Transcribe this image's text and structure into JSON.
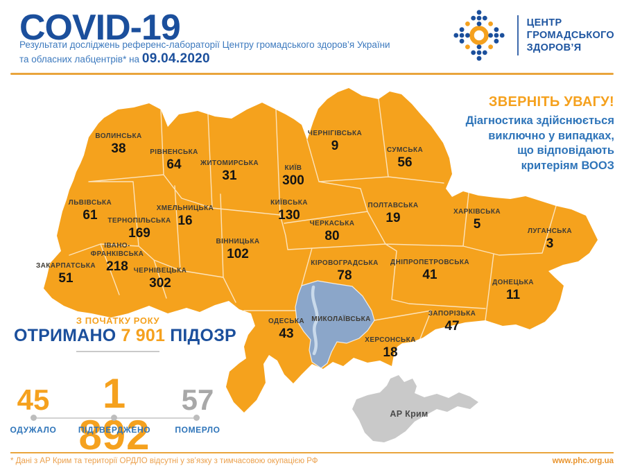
{
  "header": {
    "title": "COVID-19",
    "subtitle_line1": "Результати досліджень референс-лабораторії Центру громадського здоров’я України",
    "subtitle_line2": "та обласних лабцентрів* на",
    "date": "09.04.2020",
    "logo": {
      "line1": "ЦЕНТР",
      "line2": "ГРОМАДСЬКОГО",
      "line3": "ЗДОРОВ’Я"
    }
  },
  "notice": {
    "title": "ЗВЕРНІТЬ УВАГУ!",
    "lines": [
      "Діагностика здійснюється",
      "виключно у випадках,",
      "що відповідають",
      "критеріям ВООЗ"
    ]
  },
  "map": {
    "regions": [
      {
        "key": "volyn",
        "name": "ВОЛИНСЬКА",
        "value": "38"
      },
      {
        "key": "rivne",
        "name": "РІВНЕНСЬКА",
        "value": "64"
      },
      {
        "key": "zhytomyr",
        "name": "ЖИТОМИРСЬКА",
        "value": "31"
      },
      {
        "key": "kyiv-city",
        "name": "КИЇВ",
        "value": "300"
      },
      {
        "key": "chernihiv",
        "name": "ЧЕРНІГІВСЬКА",
        "value": "9"
      },
      {
        "key": "sumy",
        "name": "СУМСЬКА",
        "value": "56"
      },
      {
        "key": "lviv",
        "name": "ЛЬВІВСЬКА",
        "value": "61"
      },
      {
        "key": "ternopil",
        "name": "ТЕРНОПІЛЬСЬКА",
        "value": "169"
      },
      {
        "key": "khmelnytskyi",
        "name": "ХМЕЛЬНИЦЬКА",
        "value": "16"
      },
      {
        "key": "kyiv-oblast",
        "name": "КИЇВСЬКА",
        "value": "130"
      },
      {
        "key": "poltava",
        "name": "ПОЛТАВСЬКА",
        "value": "19"
      },
      {
        "key": "kharkiv",
        "name": "ХАРКІВСЬКА",
        "value": "5"
      },
      {
        "key": "luhansk",
        "name": "ЛУГАНСЬКА",
        "value": "3"
      },
      {
        "key": "ivano-frankivsk",
        "name": "ІВАНО-ФРАНКІВСЬКА",
        "value": "218"
      },
      {
        "key": "vinnytsia",
        "name": "ВІННИЦЬКА",
        "value": "102"
      },
      {
        "key": "cherkasy",
        "name": "ЧЕРКАСЬКА",
        "value": "80"
      },
      {
        "key": "kirovohrad",
        "name": "КІРОВОГРАДСЬКА",
        "value": "78"
      },
      {
        "key": "dnipro",
        "name": "ДНІПРОПЕТРОВСЬКА",
        "value": "41"
      },
      {
        "key": "zakarpattia",
        "name": "ЗАКАРПАТСЬКА",
        "value": "51"
      },
      {
        "key": "chernivtsi",
        "name": "ЧЕРНІВЕЦЬКА",
        "value": "302"
      },
      {
        "key": "donetsk",
        "name": "ДОНЕЦЬКА",
        "value": "11"
      },
      {
        "key": "odesa",
        "name": "ОДЕСЬКА",
        "value": "43"
      },
      {
        "key": "mykolaiv",
        "name": "МИКОЛАЇВСЬКА",
        "value": null
      },
      {
        "key": "zaporizhzhia",
        "name": "ЗАПОРІЗЬКА",
        "value": "47"
      },
      {
        "key": "kherson",
        "name": "ХЕРСОНСЬКА",
        "value": "18"
      },
      {
        "key": "crimea",
        "name": "АР Крим",
        "value": null
      }
    ],
    "colors": {
      "region_fill": "#F5A21D",
      "highlight_fill": "#8BA6C9",
      "crimea_fill": "#C9C9C9",
      "river": "#C9DAEB",
      "border": "rgba(255,255,255,0.7)"
    }
  },
  "stats": {
    "period_label": "З ПОЧАТКУ РОКУ",
    "received_prefix": "ОТРИМАНО",
    "received_value": "7 901",
    "received_suffix": "ПІДОЗР",
    "recovered": {
      "value": "45",
      "label": "ОДУЖАЛО"
    },
    "confirmed": {
      "value": "1 892",
      "label": "ПІДТВЕРДЖЕНО"
    },
    "died": {
      "value": "57",
      "label": "ПОМЕРЛО"
    }
  },
  "footer": {
    "note": "* Дані з АР Крим та території ОРДЛО відсутні у зв’язку з тимчасовою окупацією РФ",
    "website": "www.phc.org.ua"
  },
  "colors": {
    "deep_blue": "#1B4F9C",
    "subtitle_blue": "#3C79BE",
    "notice_blue": "#2E74B9",
    "accent_orange": "#F5A11E",
    "muted_gray": "#A8A8A8"
  }
}
